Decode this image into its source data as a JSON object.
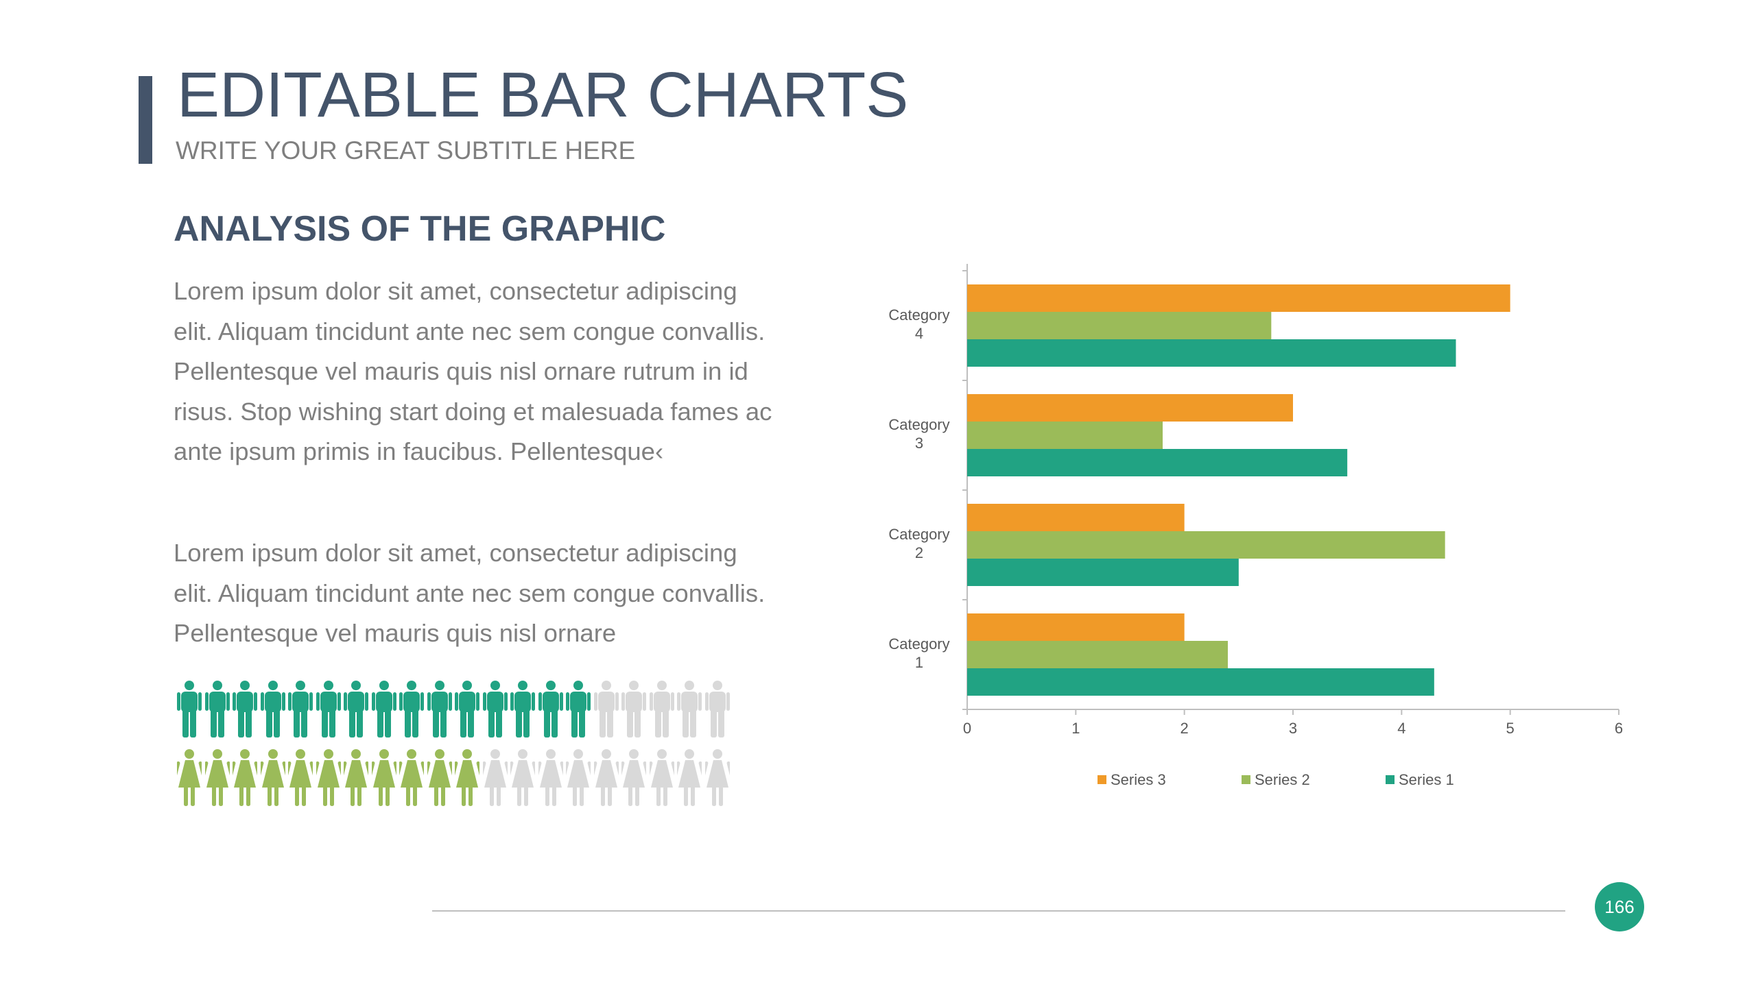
{
  "header": {
    "title": "EDITABLE BAR CHARTS",
    "subtitle": "WRITE YOUR GREAT SUBTITLE HERE"
  },
  "section": {
    "heading": "ANALYSIS OF THE GRAPHIC",
    "paragraphs": [
      "Lorem ipsum dolor sit amet, consectetur adipiscing elit. Aliquam tincidunt ante nec sem congue convallis. Pellentesque vel mauris quis nisl ornare rutrum in id risus. Stop wishing start doing et malesuada fames ac ante ipsum primis in faucibus. Pellentesque‹",
      "Lorem ipsum dolor sit amet, consectetur adipiscing elit. Aliquam tincidunt ante nec sem congue convallis. Pellentesque vel mauris quis nisl ornare"
    ]
  },
  "infographic": {
    "men": {
      "total": 20,
      "highlighted": 15,
      "color": "#21a383",
      "icon": "man-icon"
    },
    "women": {
      "total": 20,
      "highlighted": 11,
      "color": "#9bbb59",
      "icon": "woman-icon"
    },
    "inactive_color": "#d9d9d9"
  },
  "chart_data": {
    "type": "bar",
    "orientation": "horizontal",
    "categories": [
      "Category 1",
      "Category 2",
      "Category 3",
      "Category 4"
    ],
    "series": [
      {
        "name": "Series 3",
        "color": "#f09a28",
        "values": [
          2,
          2,
          3,
          5
        ]
      },
      {
        "name": "Series 2",
        "color": "#9bbb59",
        "values": [
          2.4,
          4.4,
          1.8,
          2.8
        ]
      },
      {
        "name": "Series 1",
        "color": "#21a383",
        "values": [
          4.3,
          2.5,
          3.5,
          4.5
        ]
      }
    ],
    "xlim": [
      0,
      6
    ],
    "xticks": [
      0,
      1,
      2,
      3,
      4,
      5,
      6
    ],
    "grid": false,
    "legend": "bottom"
  },
  "footer": {
    "page_number": "166"
  },
  "colors": {
    "accent": "#44546a",
    "body_text": "#7f7f7f",
    "badge": "#21a383"
  }
}
